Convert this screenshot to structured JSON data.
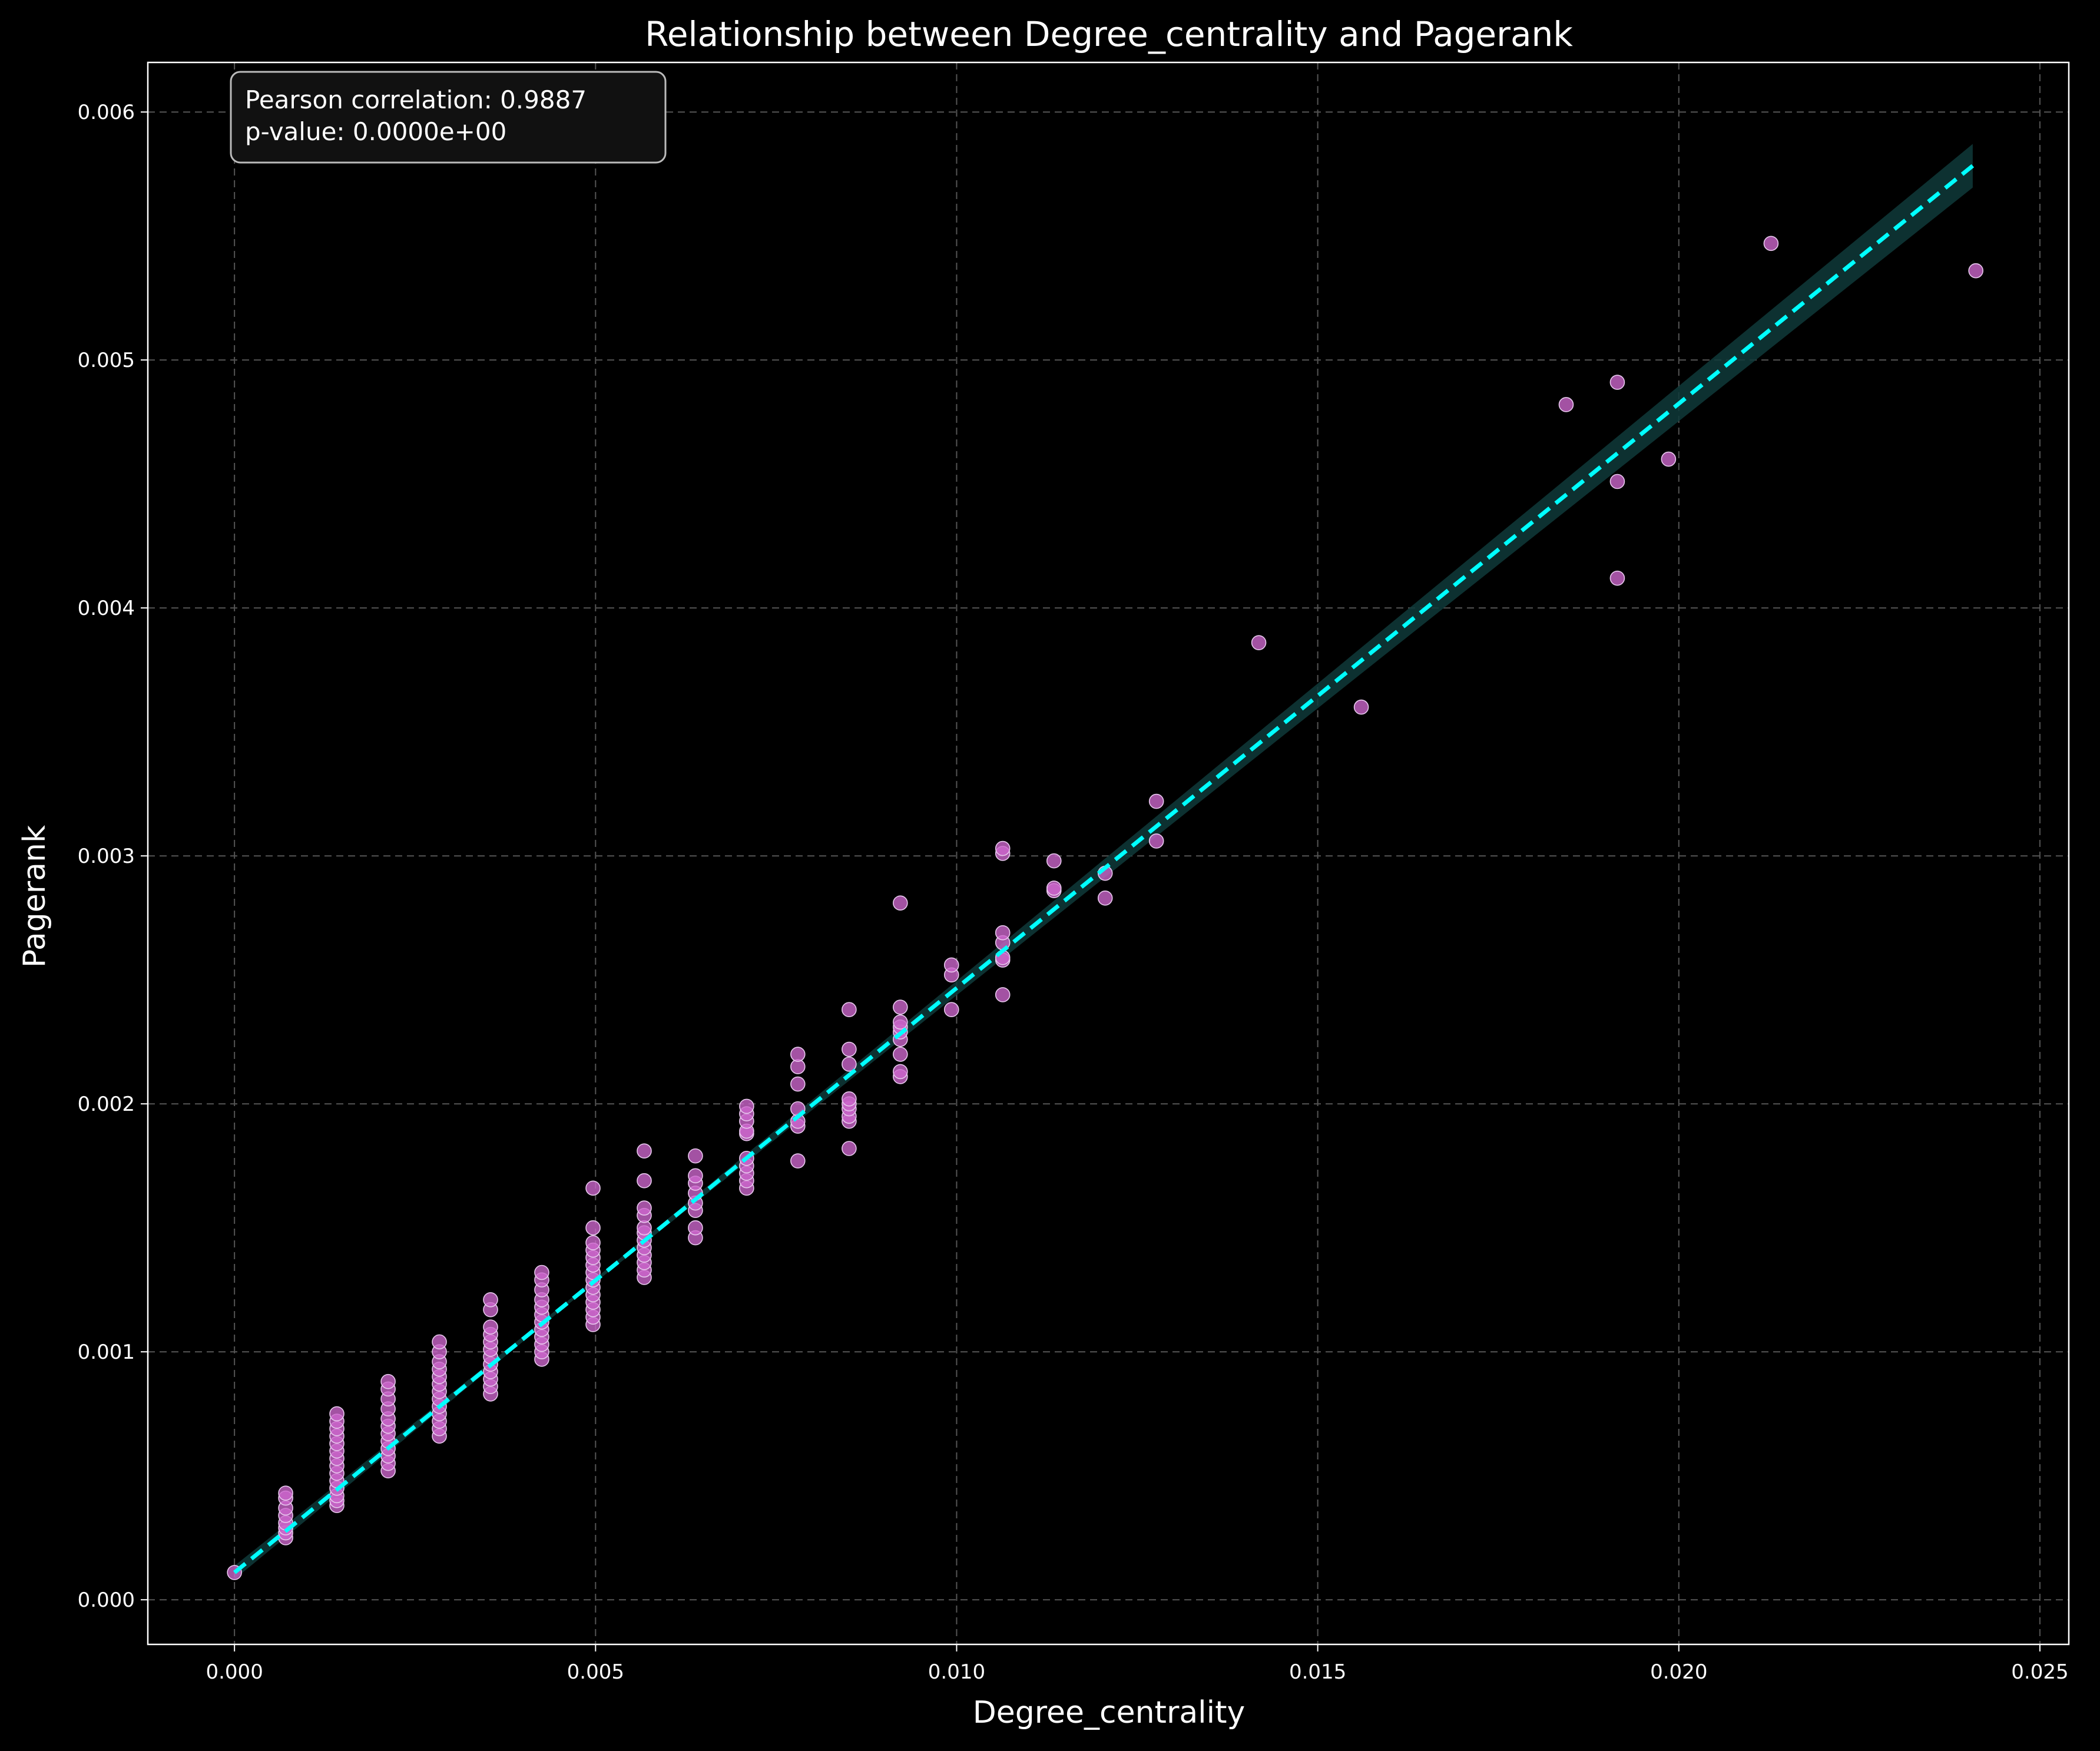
{
  "chart_data": {
    "type": "scatter",
    "title": "Relationship between Degree_centrality and Pagerank",
    "xlabel": "Degree_centrality",
    "ylabel": "Pagerank",
    "xlim": [
      -0.0012,
      0.0254
    ],
    "ylim": [
      -0.00018,
      0.0062
    ],
    "xticks": [
      0.0,
      0.005,
      0.01,
      0.015,
      0.02,
      0.025
    ],
    "xtick_labels": [
      "0.000",
      "0.005",
      "0.010",
      "0.015",
      "0.020",
      "0.025"
    ],
    "yticks": [
      0.0,
      0.001,
      0.002,
      0.003,
      0.004,
      0.005,
      0.006
    ],
    "ytick_labels": [
      "0.000",
      "0.001",
      "0.002",
      "0.003",
      "0.004",
      "0.005",
      "0.006"
    ],
    "grid": true,
    "annotation": [
      "Pearson correlation: 0.9887",
      "p-value: 0.0000e+00"
    ],
    "regression": {
      "x_range": [
        0.0,
        0.02407
      ],
      "intercept": 0.00011,
      "slope": 0.2357
    },
    "colors": {
      "background": "#000000",
      "points": "#cc66cc",
      "point_edge": "#e8c8ee",
      "regression_line": "#00ffff",
      "confidence_band": "#0f3a3a",
      "grid": "#555555",
      "text": "#ffffff"
    },
    "points": [
      [
        0.0,
        0.00011
      ],
      [
        0.000709,
        0.00025
      ],
      [
        0.000709,
        0.00027
      ],
      [
        0.000709,
        0.00029
      ],
      [
        0.000709,
        0.00031
      ],
      [
        0.000709,
        0.00034
      ],
      [
        0.000709,
        0.00037
      ],
      [
        0.000709,
        0.00041
      ],
      [
        0.000709,
        0.00043
      ],
      [
        0.001418,
        0.00038
      ],
      [
        0.001418,
        0.0004
      ],
      [
        0.001418,
        0.00042
      ],
      [
        0.001418,
        0.00045
      ],
      [
        0.001418,
        0.00048
      ],
      [
        0.001418,
        0.00051
      ],
      [
        0.001418,
        0.00054
      ],
      [
        0.001418,
        0.00057
      ],
      [
        0.001418,
        0.0006
      ],
      [
        0.001418,
        0.00063
      ],
      [
        0.001418,
        0.00066
      ],
      [
        0.001418,
        0.00069
      ],
      [
        0.001418,
        0.00072
      ],
      [
        0.001418,
        0.00075
      ],
      [
        0.002128,
        0.00052
      ],
      [
        0.002128,
        0.00055
      ],
      [
        0.002128,
        0.00058
      ],
      [
        0.002128,
        0.00061
      ],
      [
        0.002128,
        0.00064
      ],
      [
        0.002128,
        0.00067
      ],
      [
        0.002128,
        0.0007
      ],
      [
        0.002128,
        0.00073
      ],
      [
        0.002128,
        0.00077
      ],
      [
        0.002128,
        0.00081
      ],
      [
        0.002128,
        0.00085
      ],
      [
        0.002128,
        0.00088
      ],
      [
        0.002837,
        0.00066
      ],
      [
        0.002837,
        0.00069
      ],
      [
        0.002837,
        0.00072
      ],
      [
        0.002837,
        0.00075
      ],
      [
        0.002837,
        0.00078
      ],
      [
        0.002837,
        0.00081
      ],
      [
        0.002837,
        0.00084
      ],
      [
        0.002837,
        0.00087
      ],
      [
        0.002837,
        0.0009
      ],
      [
        0.002837,
        0.00093
      ],
      [
        0.002837,
        0.00096
      ],
      [
        0.002837,
        0.001
      ],
      [
        0.002837,
        0.00104
      ],
      [
        0.003546,
        0.00083
      ],
      [
        0.003546,
        0.00086
      ],
      [
        0.003546,
        0.00089
      ],
      [
        0.003546,
        0.00092
      ],
      [
        0.003546,
        0.00095
      ],
      [
        0.003546,
        0.00098
      ],
      [
        0.003546,
        0.00101
      ],
      [
        0.003546,
        0.00104
      ],
      [
        0.003546,
        0.00107
      ],
      [
        0.003546,
        0.0011
      ],
      [
        0.003546,
        0.00117
      ],
      [
        0.003546,
        0.00121
      ],
      [
        0.004255,
        0.00097
      ],
      [
        0.004255,
        0.001
      ],
      [
        0.004255,
        0.00103
      ],
      [
        0.004255,
        0.00106
      ],
      [
        0.004255,
        0.00109
      ],
      [
        0.004255,
        0.00112
      ],
      [
        0.004255,
        0.00115
      ],
      [
        0.004255,
        0.00118
      ],
      [
        0.004255,
        0.00121
      ],
      [
        0.004255,
        0.00125
      ],
      [
        0.004255,
        0.00129
      ],
      [
        0.004255,
        0.00132
      ],
      [
        0.004965,
        0.00111
      ],
      [
        0.004965,
        0.00114
      ],
      [
        0.004965,
        0.00117
      ],
      [
        0.004965,
        0.0012
      ],
      [
        0.004965,
        0.00123
      ],
      [
        0.004965,
        0.00126
      ],
      [
        0.004965,
        0.00129
      ],
      [
        0.004965,
        0.00132
      ],
      [
        0.004965,
        0.00135
      ],
      [
        0.004965,
        0.00138
      ],
      [
        0.004965,
        0.00141
      ],
      [
        0.004965,
        0.00144
      ],
      [
        0.004965,
        0.0015
      ],
      [
        0.004965,
        0.00166
      ],
      [
        0.005674,
        0.0013
      ],
      [
        0.005674,
        0.00133
      ],
      [
        0.005674,
        0.00136
      ],
      [
        0.005674,
        0.00139
      ],
      [
        0.005674,
        0.00142
      ],
      [
        0.005674,
        0.00145
      ],
      [
        0.005674,
        0.00148
      ],
      [
        0.005674,
        0.0015
      ],
      [
        0.005674,
        0.00155
      ],
      [
        0.005674,
        0.00158
      ],
      [
        0.005674,
        0.00169
      ],
      [
        0.005674,
        0.00181
      ],
      [
        0.006383,
        0.00146
      ],
      [
        0.006383,
        0.0015
      ],
      [
        0.006383,
        0.00157
      ],
      [
        0.006383,
        0.0016
      ],
      [
        0.006383,
        0.00164
      ],
      [
        0.006383,
        0.00168
      ],
      [
        0.006383,
        0.00171
      ],
      [
        0.006383,
        0.00179
      ],
      [
        0.007092,
        0.00166
      ],
      [
        0.007092,
        0.00169
      ],
      [
        0.007092,
        0.00172
      ],
      [
        0.007092,
        0.00175
      ],
      [
        0.007092,
        0.00178
      ],
      [
        0.007092,
        0.00188
      ],
      [
        0.007092,
        0.00189
      ],
      [
        0.007092,
        0.00193
      ],
      [
        0.007092,
        0.00196
      ],
      [
        0.007092,
        0.00199
      ],
      [
        0.007801,
        0.00177
      ],
      [
        0.007801,
        0.00191
      ],
      [
        0.007801,
        0.00193
      ],
      [
        0.007801,
        0.00198
      ],
      [
        0.007801,
        0.00208
      ],
      [
        0.007801,
        0.00215
      ],
      [
        0.007801,
        0.0022
      ],
      [
        0.008511,
        0.00182
      ],
      [
        0.008511,
        0.00193
      ],
      [
        0.008511,
        0.00195
      ],
      [
        0.008511,
        0.00198
      ],
      [
        0.008511,
        0.002
      ],
      [
        0.008511,
        0.00202
      ],
      [
        0.008511,
        0.00216
      ],
      [
        0.008511,
        0.00222
      ],
      [
        0.008511,
        0.00238
      ],
      [
        0.00922,
        0.00211
      ],
      [
        0.00922,
        0.00213
      ],
      [
        0.00922,
        0.0022
      ],
      [
        0.00922,
        0.00226
      ],
      [
        0.00922,
        0.00229
      ],
      [
        0.00922,
        0.00231
      ],
      [
        0.00922,
        0.00233
      ],
      [
        0.00922,
        0.00239
      ],
      [
        0.00922,
        0.00281
      ],
      [
        0.009929,
        0.00238
      ],
      [
        0.009929,
        0.00252
      ],
      [
        0.009929,
        0.00256
      ],
      [
        0.010638,
        0.00244
      ],
      [
        0.010638,
        0.00258
      ],
      [
        0.010638,
        0.00259
      ],
      [
        0.010638,
        0.00265
      ],
      [
        0.010638,
        0.00269
      ],
      [
        0.010638,
        0.00301
      ],
      [
        0.010638,
        0.00303
      ],
      [
        0.011348,
        0.00286
      ],
      [
        0.011348,
        0.00287
      ],
      [
        0.011348,
        0.00298
      ],
      [
        0.012057,
        0.00283
      ],
      [
        0.012057,
        0.00293
      ],
      [
        0.012766,
        0.00306
      ],
      [
        0.012766,
        0.00322
      ],
      [
        0.014184,
        0.00386
      ],
      [
        0.015603,
        0.0036
      ],
      [
        0.01844,
        0.00482
      ],
      [
        0.019149,
        0.00412
      ],
      [
        0.019149,
        0.00451
      ],
      [
        0.019149,
        0.00491
      ],
      [
        0.019858,
        0.0046
      ],
      [
        0.021277,
        0.00547
      ],
      [
        0.024113,
        0.00536
      ]
    ]
  }
}
